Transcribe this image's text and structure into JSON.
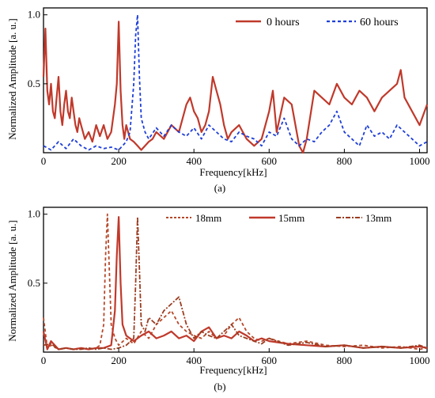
{
  "panels": [
    {
      "caption": "(a)",
      "xlabel": "Frequency[kHz]",
      "ylabel": "Normalized Amplitude [a. u.]",
      "xlim": [
        0,
        1020
      ],
      "ylim": [
        0,
        1.05
      ],
      "xticks": [
        "0",
        "200",
        "400",
        "600",
        "800",
        "1000"
      ],
      "yticks": [
        "0.5",
        "1.0"
      ],
      "legend": [
        {
          "label": "0 hours",
          "color": "#c0392b",
          "style": "solid"
        },
        {
          "label": "60 hours",
          "color": "#1f3fd9",
          "style": "dashed"
        }
      ]
    },
    {
      "caption": "(b)",
      "xlabel": "Frequency[kHz]",
      "ylabel": "Normalized Amplitude [a. u.]",
      "xlim": [
        0,
        1020
      ],
      "ylim": [
        0,
        1.05
      ],
      "xticks": [
        "0",
        "200",
        "400",
        "600",
        "800",
        "1000"
      ],
      "yticks": [
        "0.5",
        "1.0"
      ],
      "legend": [
        {
          "label": "18mm",
          "color": "#b5482a",
          "style": "dashed"
        },
        {
          "label": "15mm",
          "color": "#c0392b",
          "style": "solid"
        },
        {
          "label": "13mm",
          "color": "#9b3d22",
          "style": "dashdot"
        }
      ]
    }
  ],
  "chart_data": [
    {
      "type": "line",
      "title": "",
      "xlabel": "Frequency[kHz]",
      "ylabel": "Normalized Amplitude [a. u.]",
      "xlim": [
        0,
        1020
      ],
      "ylim": [
        0,
        1.05
      ],
      "legend_position": "top-right",
      "series": [
        {
          "name": "0 hours",
          "x": [
            0,
            5,
            10,
            15,
            20,
            25,
            30,
            35,
            40,
            45,
            50,
            55,
            60,
            65,
            70,
            75,
            80,
            85,
            90,
            95,
            100,
            110,
            120,
            130,
            140,
            150,
            160,
            170,
            180,
            190,
            195,
            200,
            205,
            210,
            215,
            220,
            230,
            240,
            250,
            260,
            270,
            280,
            290,
            300,
            320,
            340,
            360,
            380,
            390,
            400,
            410,
            420,
            430,
            440,
            450,
            460,
            470,
            480,
            490,
            500,
            520,
            540,
            560,
            580,
            600,
            610,
            620,
            640,
            660,
            680,
            690,
            700,
            720,
            740,
            760,
            780,
            800,
            820,
            840,
            860,
            880,
            900,
            920,
            940,
            950,
            960,
            980,
            1000,
            1020
          ],
          "values": [
            0.55,
            0.9,
            0.45,
            0.35,
            0.5,
            0.3,
            0.25,
            0.4,
            0.55,
            0.3,
            0.2,
            0.35,
            0.45,
            0.3,
            0.25,
            0.4,
            0.3,
            0.2,
            0.15,
            0.25,
            0.2,
            0.1,
            0.15,
            0.08,
            0.2,
            0.12,
            0.2,
            0.1,
            0.15,
            0.35,
            0.5,
            0.95,
            0.45,
            0.2,
            0.1,
            0.2,
            0.1,
            0.08,
            0.05,
            0.02,
            0.05,
            0.08,
            0.1,
            0.15,
            0.1,
            0.2,
            0.15,
            0.35,
            0.4,
            0.3,
            0.25,
            0.15,
            0.2,
            0.3,
            0.55,
            0.45,
            0.35,
            0.2,
            0.1,
            0.15,
            0.2,
            0.1,
            0.05,
            0.1,
            0.3,
            0.45,
            0.15,
            0.4,
            0.35,
            0.05,
            0.0,
            0.1,
            0.45,
            0.4,
            0.35,
            0.5,
            0.4,
            0.35,
            0.45,
            0.4,
            0.3,
            0.4,
            0.45,
            0.5,
            0.6,
            0.4,
            0.3,
            0.2,
            0.35
          ]
        },
        {
          "name": "60 hours",
          "x": [
            0,
            20,
            40,
            60,
            80,
            100,
            120,
            140,
            160,
            180,
            200,
            210,
            220,
            230,
            240,
            245,
            250,
            255,
            260,
            270,
            280,
            300,
            320,
            340,
            360,
            380,
            400,
            420,
            440,
            460,
            480,
            500,
            520,
            540,
            560,
            580,
            600,
            620,
            640,
            660,
            680,
            700,
            720,
            740,
            760,
            780,
            800,
            820,
            840,
            860,
            880,
            900,
            920,
            940,
            960,
            980,
            1000,
            1020
          ],
          "values": [
            0.05,
            0.02,
            0.08,
            0.03,
            0.1,
            0.05,
            0.02,
            0.05,
            0.03,
            0.04,
            0.02,
            0.05,
            0.08,
            0.15,
            0.5,
            0.85,
            1.0,
            0.55,
            0.25,
            0.15,
            0.1,
            0.18,
            0.12,
            0.2,
            0.15,
            0.12,
            0.18,
            0.1,
            0.2,
            0.15,
            0.1,
            0.08,
            0.15,
            0.12,
            0.1,
            0.05,
            0.15,
            0.12,
            0.25,
            0.1,
            0.05,
            0.1,
            0.08,
            0.15,
            0.2,
            0.3,
            0.15,
            0.1,
            0.05,
            0.2,
            0.12,
            0.15,
            0.1,
            0.2,
            0.15,
            0.1,
            0.05,
            0.08
          ]
        }
      ]
    },
    {
      "type": "line",
      "title": "",
      "xlabel": "Frequency[kHz]",
      "ylabel": "Normalized Amplitude [a. u.]",
      "xlim": [
        0,
        1020
      ],
      "ylim": [
        0,
        1.05
      ],
      "legend_position": "top",
      "series": [
        {
          "name": "18mm",
          "x": [
            0,
            10,
            20,
            40,
            60,
            80,
            100,
            120,
            140,
            150,
            160,
            165,
            170,
            175,
            180,
            190,
            200,
            220,
            240,
            260,
            280,
            300,
            320,
            340,
            360,
            380,
            400,
            420,
            440,
            460,
            480,
            500,
            520,
            540,
            560,
            580,
            600,
            650,
            700,
            750,
            800,
            850,
            900,
            950,
            1000,
            1020
          ],
          "values": [
            0.25,
            0.03,
            0.05,
            0.02,
            0.03,
            0.02,
            0.03,
            0.02,
            0.03,
            0.05,
            0.2,
            0.7,
            1.0,
            0.6,
            0.2,
            0.1,
            0.05,
            0.1,
            0.06,
            0.15,
            0.1,
            0.2,
            0.25,
            0.3,
            0.2,
            0.15,
            0.12,
            0.1,
            0.15,
            0.1,
            0.12,
            0.2,
            0.25,
            0.15,
            0.1,
            0.08,
            0.1,
            0.06,
            0.08,
            0.05,
            0.04,
            0.05,
            0.03,
            0.04,
            0.02,
            0.03
          ]
        },
        {
          "name": "15mm",
          "x": [
            0,
            10,
            20,
            40,
            60,
            80,
            100,
            120,
            140,
            160,
            180,
            190,
            195,
            200,
            205,
            210,
            220,
            240,
            260,
            280,
            300,
            320,
            340,
            360,
            380,
            400,
            420,
            440,
            460,
            480,
            500,
            520,
            540,
            560,
            580,
            600,
            650,
            700,
            750,
            800,
            850,
            900,
            950,
            1000,
            1020
          ],
          "values": [
            0.15,
            0.02,
            0.08,
            0.02,
            0.03,
            0.02,
            0.03,
            0.02,
            0.03,
            0.03,
            0.05,
            0.3,
            0.7,
            0.98,
            0.5,
            0.2,
            0.12,
            0.08,
            0.12,
            0.15,
            0.1,
            0.12,
            0.15,
            0.1,
            0.12,
            0.08,
            0.15,
            0.18,
            0.1,
            0.12,
            0.1,
            0.15,
            0.12,
            0.08,
            0.1,
            0.08,
            0.06,
            0.05,
            0.04,
            0.05,
            0.03,
            0.04,
            0.03,
            0.04,
            0.03
          ]
        },
        {
          "name": "13mm",
          "x": [
            0,
            20,
            40,
            60,
            80,
            100,
            120,
            140,
            160,
            180,
            200,
            220,
            240,
            245,
            250,
            255,
            260,
            270,
            280,
            300,
            320,
            340,
            360,
            380,
            400,
            420,
            440,
            460,
            480,
            500,
            520,
            540,
            560,
            580,
            600,
            650,
            700,
            750,
            800,
            850,
            900,
            950,
            1000,
            1020
          ],
          "values": [
            0.05,
            0.06,
            0.02,
            0.03,
            0.02,
            0.02,
            0.03,
            0.02,
            0.03,
            0.02,
            0.03,
            0.05,
            0.1,
            0.5,
            0.98,
            0.6,
            0.2,
            0.15,
            0.25,
            0.2,
            0.3,
            0.35,
            0.4,
            0.2,
            0.1,
            0.15,
            0.12,
            0.1,
            0.15,
            0.2,
            0.12,
            0.1,
            0.08,
            0.06,
            0.1,
            0.05,
            0.07,
            0.04,
            0.05,
            0.03,
            0.04,
            0.03,
            0.05,
            0.03
          ]
        }
      ]
    }
  ]
}
